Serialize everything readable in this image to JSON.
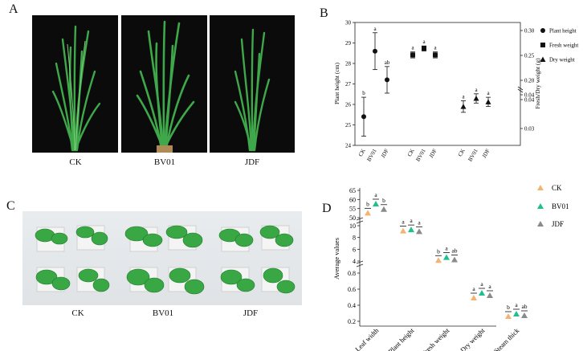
{
  "panels": {
    "a": {
      "letter": "A",
      "captions": [
        "CK",
        "BV01",
        "JDF"
      ]
    },
    "b": {
      "letter": "B"
    },
    "c": {
      "letter": "C",
      "captions": [
        "CK",
        "BV01",
        "JDF"
      ]
    },
    "d": {
      "letter": "D"
    }
  },
  "colors": {
    "ck": "#f2b46e",
    "bv01": "#1fbf8f",
    "jdf": "#8a8a8a",
    "leaf": "#3aa745",
    "leaf_dark": "#1f7a2c"
  },
  "chart_data": [
    {
      "type": "scatter",
      "panel": "B",
      "ylabel": "Plant height (cm)",
      "y2label": "Fresh/Dry weight (g)",
      "ylim": [
        24,
        30
      ],
      "y2ticks": [
        "0.30",
        "0.25",
        "0.20",
        "0.04",
        "0.04",
        "0.03"
      ],
      "yticks": [
        "24",
        "25",
        "26",
        "27",
        "28",
        "29",
        "30"
      ],
      "legend": [
        "Plant height",
        "Fresh weight",
        "Dry weight"
      ],
      "categories": [
        "CK",
        "BV01",
        "JDF"
      ],
      "series": [
        {
          "name": "Plant height",
          "marker": "circle",
          "values": [
            25.4,
            28.6,
            27.2
          ],
          "errors": [
            0.95,
            0.9,
            0.65
          ],
          "letters": [
            "b",
            "a",
            "ab"
          ]
        },
        {
          "name": "Fresh weight",
          "marker": "square",
          "values": [
            0.251,
            0.264,
            0.251
          ],
          "errors": [
            0.006,
            0.005,
            0.006
          ],
          "letters": [
            "a",
            "a",
            "a"
          ]
        },
        {
          "name": "Dry weight",
          "marker": "triangle",
          "values": [
            0.0376,
            0.0404,
            0.0392
          ],
          "errors": [
            0.002,
            0.0016,
            0.0016
          ],
          "letters": [
            "a",
            "a",
            "a"
          ]
        }
      ]
    },
    {
      "type": "scatter",
      "panel": "D",
      "ylabel": "Average values",
      "categories": [
        "Leaf width",
        "Plant height",
        "Fresh weight",
        "Dry weight",
        "Steam thick"
      ],
      "legend": [
        "CK",
        "BV01",
        "JDF"
      ],
      "yticks_top": [
        "50",
        "55",
        "60",
        "65"
      ],
      "yticks_mid": [
        "4",
        "6",
        "8",
        "10"
      ],
      "yticks_low": [
        "0.2",
        "0.4",
        "0.6",
        "0.8"
      ],
      "series": [
        {
          "name": "CK",
          "values": [
            52.5,
            9.1,
            4.1,
            0.49,
            0.26
          ],
          "letters": [
            "b",
            "a",
            "b",
            "a",
            "b"
          ]
        },
        {
          "name": "BV01",
          "values": [
            57.5,
            9.3,
            4.6,
            0.55,
            0.29
          ],
          "letters": [
            "a",
            "a",
            "a",
            "a",
            "a"
          ]
        },
        {
          "name": "JDF",
          "values": [
            54.5,
            9.0,
            4.2,
            0.52,
            0.27
          ],
          "letters": [
            "b",
            "a",
            "ab",
            "a",
            "ab"
          ]
        }
      ]
    }
  ]
}
